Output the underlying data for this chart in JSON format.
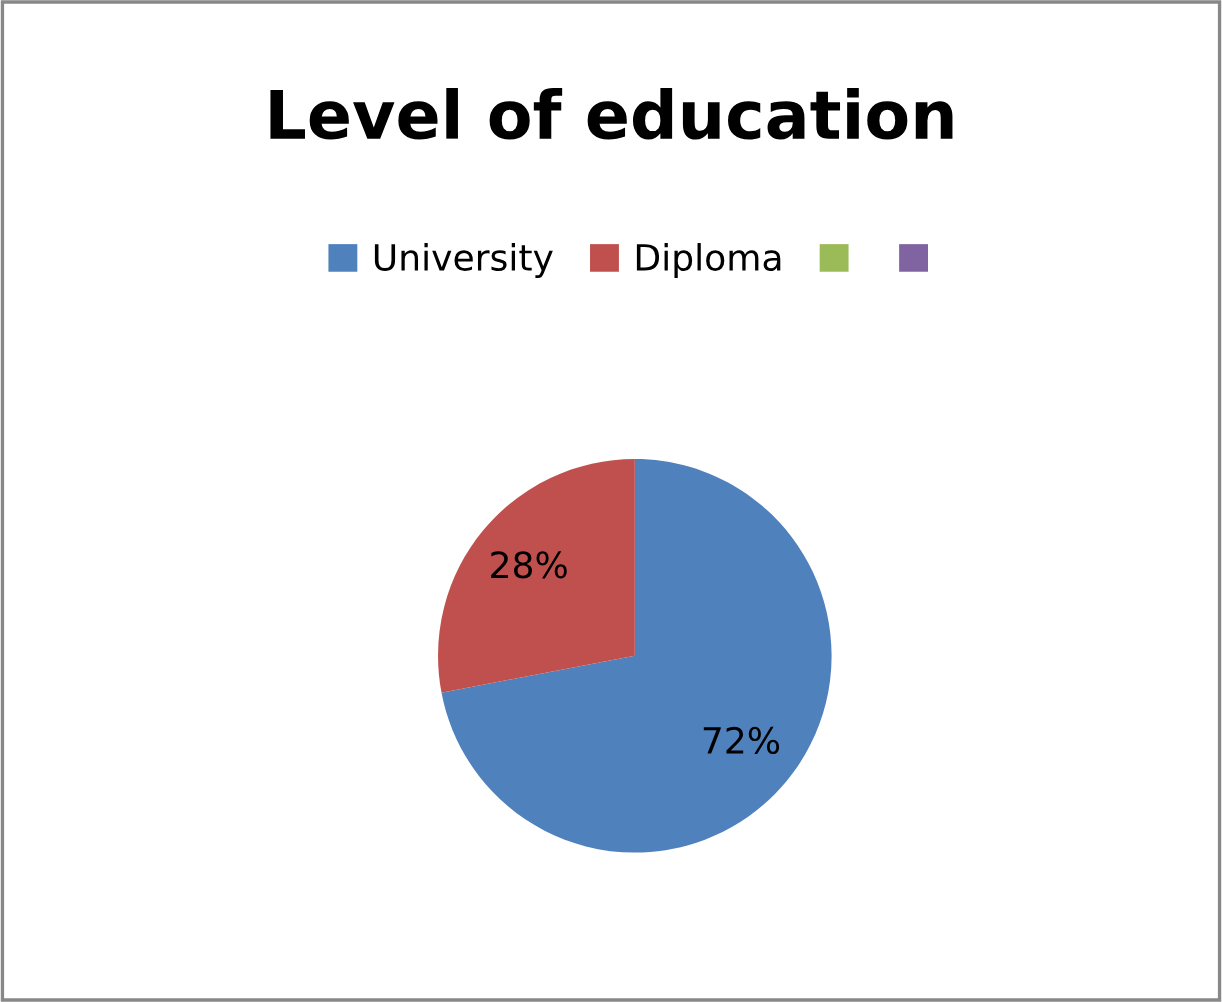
{
  "chart_data": {
    "type": "pie",
    "title": "Level of education",
    "categories": [
      "University",
      "Diploma",
      null,
      null
    ],
    "values": [
      72,
      28,
      0,
      0
    ],
    "colors": [
      "#4f81bd",
      "#c0504d",
      "#9bbb59",
      "#8064a2"
    ],
    "value_labels": [
      "72%",
      "28%",
      null,
      null
    ],
    "legend": "top"
  }
}
